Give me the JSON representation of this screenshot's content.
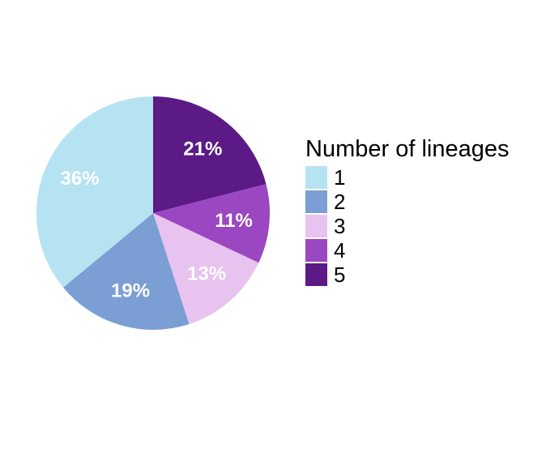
{
  "chart_data": {
    "type": "pie",
    "legend_title": "Number of lineages",
    "legend_position": "right",
    "slices": [
      {
        "category": "1",
        "percent": 36,
        "label": "36%",
        "color": "#b5e3f1"
      },
      {
        "category": "2",
        "percent": 19,
        "label": "19%",
        "color": "#7b9ed4"
      },
      {
        "category": "3",
        "percent": 13,
        "label": "13%",
        "color": "#e8c3ef"
      },
      {
        "category": "4",
        "percent": 11,
        "label": "11%",
        "color": "#9a47c1"
      },
      {
        "category": "5",
        "percent": 21,
        "label": "21%",
        "color": "#5b1a86"
      }
    ]
  }
}
